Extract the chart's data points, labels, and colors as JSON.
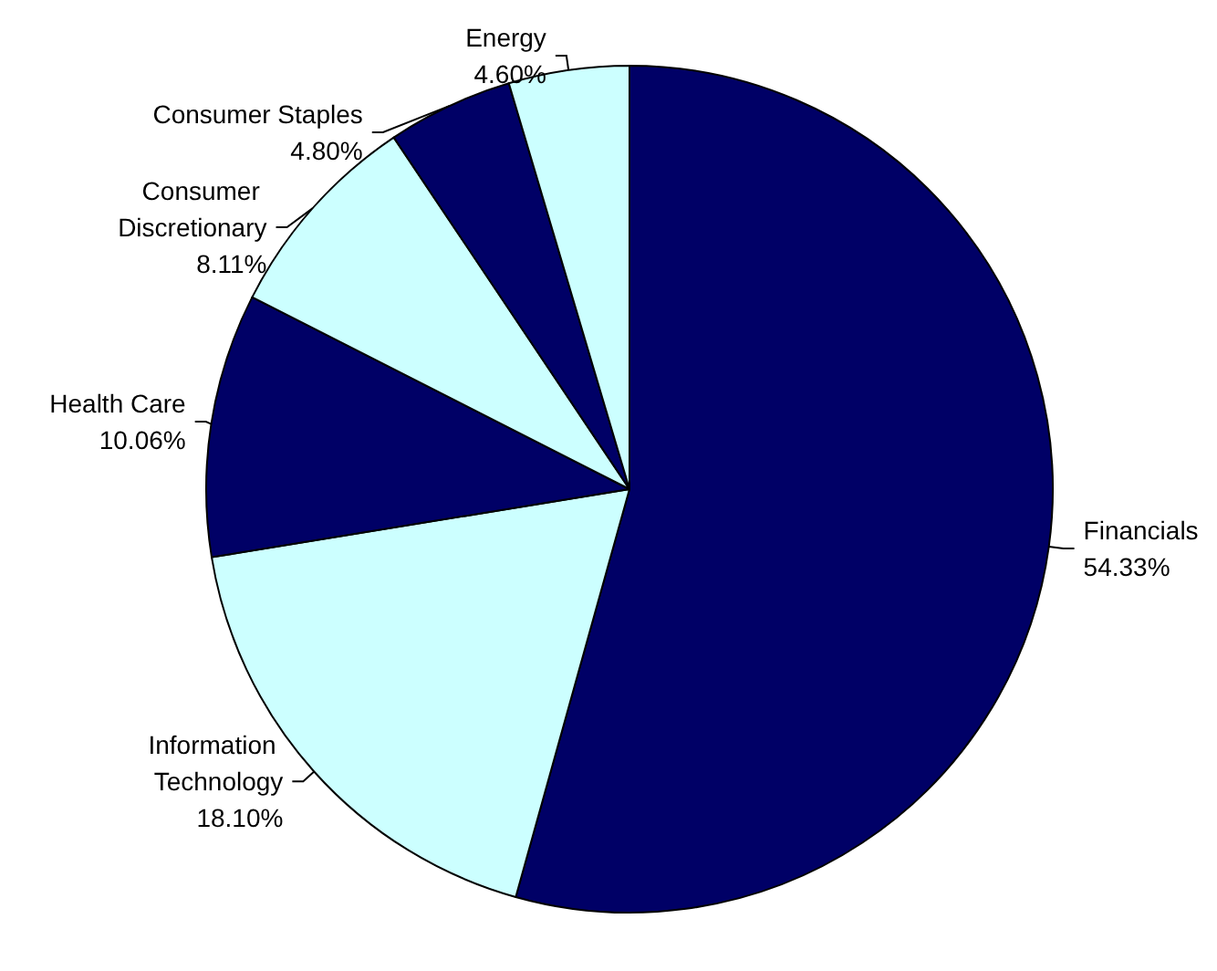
{
  "chart_data": {
    "type": "pie",
    "categories": [
      "Financials",
      "Information Technology",
      "Health Care",
      "Consumer Discretionary",
      "Consumer Staples",
      "Energy"
    ],
    "values": [
      54.33,
      18.1,
      10.06,
      8.11,
      4.8,
      4.6
    ],
    "value_labels": [
      "54.33%",
      "18.10%",
      "10.06%",
      "8.11%",
      "4.80%",
      "4.60%"
    ],
    "colors": [
      "#000066",
      "#ccffff",
      "#000066",
      "#ccffff",
      "#000066",
      "#ccffff"
    ],
    "legend": false
  }
}
